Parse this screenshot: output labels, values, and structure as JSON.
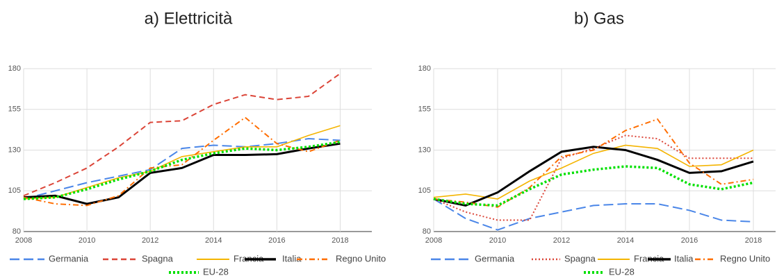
{
  "chart_data": [
    {
      "type": "line",
      "title": "a) Elettricità",
      "x": [
        2008,
        2009,
        2010,
        2011,
        2012,
        2013,
        2014,
        2015,
        2016,
        2017,
        2018
      ],
      "xlim": [
        2008,
        2019
      ],
      "xticks": [
        2008,
        2010,
        2012,
        2014,
        2016,
        2018
      ],
      "ylim": [
        80,
        180
      ],
      "yticks": [
        80,
        105,
        130,
        155,
        180
      ],
      "grid": true,
      "series": [
        {
          "name": "Germania",
          "color": "#4a86e8",
          "line_style": "long-dashed",
          "values": [
            100,
            105,
            110,
            114,
            118,
            131,
            133,
            132,
            134,
            137,
            136
          ]
        },
        {
          "name": "Spagna",
          "color": "#db4437",
          "line_style": "dashed",
          "values": [
            102,
            110,
            119,
            132,
            147,
            148,
            158,
            164,
            161,
            163,
            177
          ]
        },
        {
          "name": "Francia",
          "color": "#f4b400",
          "line_style": "solid",
          "values": [
            100,
            101,
            107,
            113,
            117,
            126,
            129,
            132,
            132,
            139,
            145
          ]
        },
        {
          "name": "Italia",
          "color": "#000000",
          "line_style": "solid-thick",
          "values": [
            101,
            102,
            97,
            101,
            116,
            119,
            127,
            127,
            127.5,
            131,
            134
          ]
        },
        {
          "name": "Regno Unito",
          "color": "#ff6d00",
          "line_style": "dash-dot",
          "values": [
            101,
            97,
            96,
            102,
            119,
            121,
            136,
            150,
            134,
            129,
            136
          ]
        },
        {
          "name": "EU-28",
          "color": "#00e000",
          "line_style": "dotted-thick",
          "values": [
            100,
            101,
            106,
            112,
            117,
            124,
            128,
            131,
            130,
            132,
            135
          ]
        }
      ]
    },
    {
      "type": "line",
      "title": "b) Gas",
      "x": [
        2008,
        2009,
        2010,
        2011,
        2012,
        2013,
        2014,
        2015,
        2016,
        2017,
        2018
      ],
      "xlim": [
        2008,
        2019
      ],
      "xticks": [
        2008,
        2010,
        2012,
        2014,
        2016,
        2018
      ],
      "ylim": [
        80,
        180
      ],
      "yticks": [
        80,
        105,
        130,
        155,
        180
      ],
      "grid": true,
      "series": [
        {
          "name": "Germania",
          "color": "#4a86e8",
          "line_style": "long-dashed",
          "values": [
            100,
            88,
            81,
            88,
            92,
            96,
            97,
            97,
            93,
            87,
            86
          ]
        },
        {
          "name": "Spagna",
          "color": "#db4437",
          "line_style": "dotted",
          "values": [
            100,
            92,
            87,
            87,
            125,
            131,
            139,
            137,
            125,
            125,
            125
          ]
        },
        {
          "name": "Francia",
          "color": "#f4b400",
          "line_style": "solid",
          "values": [
            101,
            103,
            100,
            111,
            119,
            128,
            133,
            131,
            120,
            121,
            130
          ]
        },
        {
          "name": "Italia",
          "color": "#000000",
          "line_style": "solid-thick",
          "values": [
            100,
            96,
            104,
            117,
            129,
            132,
            130,
            124,
            116,
            117,
            123
          ]
        },
        {
          "name": "Regno Unito",
          "color": "#ff6d00",
          "line_style": "dash-dot",
          "values": [
            100,
            98,
            95,
            107,
            126,
            130,
            142,
            149,
            122,
            109,
            112
          ]
        },
        {
          "name": "EU-28",
          "color": "#00e000",
          "line_style": "dotted-thick",
          "values": [
            100,
            97,
            96,
            106,
            115,
            118,
            120,
            119,
            109,
            106,
            110
          ]
        }
      ]
    }
  ]
}
